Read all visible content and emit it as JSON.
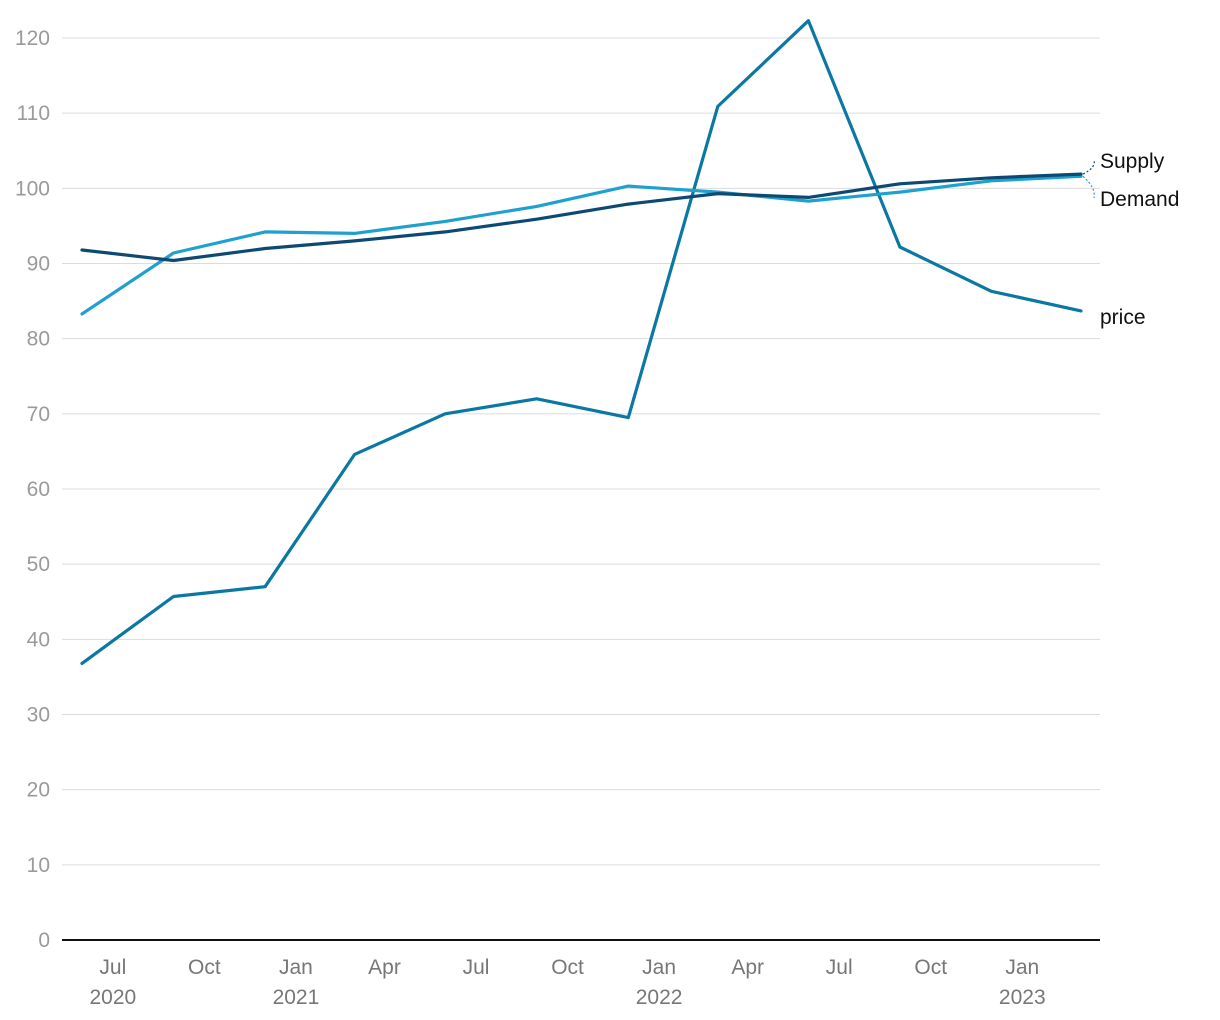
{
  "chart_data": {
    "type": "line",
    "title": "",
    "xlabel": "",
    "ylabel": "",
    "ylim": [
      0,
      120
    ],
    "yticks": [
      0,
      10,
      20,
      30,
      40,
      50,
      60,
      70,
      80,
      90,
      100,
      110,
      120
    ],
    "grid": true,
    "legend": "direct labels at right end of lines",
    "x": [
      "2020-07-01",
      "2020-10-01",
      "2021-01-01",
      "2021-04-01",
      "2021-07-01",
      "2021-10-01",
      "2022-01-01",
      "2022-04-01",
      "2022-07-01",
      "2022-10-01",
      "2023-01-01",
      "2023-04-01"
    ],
    "xticks": [
      {
        "date": "2020-08-01",
        "label": "Jul",
        "year": "2020"
      },
      {
        "date": "2020-11-01",
        "label": "Oct",
        "year": ""
      },
      {
        "date": "2021-02-01",
        "label": "Jan",
        "year": "2021"
      },
      {
        "date": "2021-05-01",
        "label": "Apr",
        "year": ""
      },
      {
        "date": "2021-08-01",
        "label": "Jul",
        "year": ""
      },
      {
        "date": "2021-11-01",
        "label": "Oct",
        "year": ""
      },
      {
        "date": "2022-02-01",
        "label": "Jan",
        "year": "2022"
      },
      {
        "date": "2022-05-01",
        "label": "Apr",
        "year": ""
      },
      {
        "date": "2022-08-01",
        "label": "Jul",
        "year": ""
      },
      {
        "date": "2022-11-01",
        "label": "Oct",
        "year": ""
      },
      {
        "date": "2023-02-01",
        "label": "Jan",
        "year": "2023"
      }
    ],
    "series": [
      {
        "name": "Supply",
        "color": "#0d4a73",
        "values": [
          91.8,
          90.4,
          92.0,
          93.0,
          94.2,
          95.9,
          97.9,
          99.3,
          98.8,
          100.6,
          101.4,
          101.9
        ]
      },
      {
        "name": "Demand",
        "color": "#1ea1cf",
        "values": [
          83.3,
          91.4,
          94.2,
          94.0,
          95.6,
          97.6,
          100.3,
          99.5,
          98.3,
          99.5,
          101.0,
          101.6
        ]
      },
      {
        "name": "price",
        "color": "#0b78a3",
        "values": [
          36.8,
          45.7,
          47.0,
          64.6,
          70.0,
          72.0,
          69.5,
          110.9,
          122.3,
          92.2,
          86.3,
          83.7
        ]
      }
    ]
  }
}
